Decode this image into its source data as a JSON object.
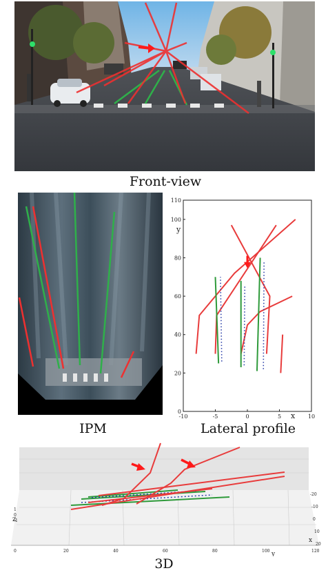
{
  "captions": {
    "front_view": "Front-view",
    "ipm": "IPM",
    "lateral_profile": "Lateral profile",
    "three_d": "3D"
  },
  "colors": {
    "prediction_red": "#e83b3b",
    "ground_truth_green": "#2e9a3a",
    "anchor_blue": "#2a3fa8",
    "arrow_red": "#ff1a1a"
  },
  "chart_data": {
    "type": "line",
    "title": "",
    "xlabel": "x",
    "ylabel": "y",
    "xlim": [
      -10,
      10
    ],
    "ylim": [
      0,
      110
    ],
    "x_ticks": [
      -10,
      -5,
      0,
      5,
      10
    ],
    "y_ticks": [
      0,
      20,
      40,
      60,
      80,
      100,
      110
    ],
    "grid": false,
    "series": [
      {
        "color": "red",
        "points": [
          [
            -2.5,
            97
          ],
          [
            3.5,
            60
          ],
          [
            3.0,
            30
          ]
        ]
      },
      {
        "color": "red",
        "points": [
          [
            -8,
            30
          ],
          [
            -7.5,
            50
          ],
          [
            -2,
            72
          ],
          [
            7.5,
            100
          ]
        ]
      },
      {
        "color": "red",
        "points": [
          [
            -5.0,
            30
          ],
          [
            -4.8,
            50
          ],
          [
            4.5,
            97
          ]
        ]
      },
      {
        "color": "red",
        "points": [
          [
            -1.0,
            30
          ],
          [
            0,
            45
          ],
          [
            2.0,
            52
          ],
          [
            7.0,
            60
          ]
        ]
      },
      {
        "color": "red",
        "points": [
          [
            5.5,
            40
          ],
          [
            5.2,
            20
          ]
        ]
      },
      {
        "color": "green",
        "points": [
          [
            -4.5,
            25
          ],
          [
            -5.0,
            70
          ]
        ]
      },
      {
        "color": "green",
        "points": [
          [
            -1.0,
            23
          ],
          [
            -1.0,
            68
          ]
        ]
      },
      {
        "color": "green",
        "points": [
          [
            1.5,
            21
          ],
          [
            2.0,
            80
          ]
        ]
      },
      {
        "color": "blue_dotted",
        "points": [
          [
            -4.0,
            26
          ],
          [
            -4.2,
            70
          ]
        ]
      },
      {
        "color": "blue_dotted",
        "points": [
          [
            -0.5,
            24
          ],
          [
            -0.4,
            66
          ]
        ]
      },
      {
        "color": "blue_dotted",
        "points": [
          [
            2.5,
            22
          ],
          [
            2.6,
            78
          ]
        ]
      }
    ],
    "annotation": {
      "type": "arrow",
      "color": "red",
      "at": [
        0,
        76
      ]
    }
  },
  "plot_3d": {
    "axis_z": "z",
    "axis_x": "x",
    "axis_y": "y",
    "y_ticks": [
      "0",
      "20",
      "40",
      "60",
      "80",
      "100",
      "120"
    ],
    "x_ticks": [
      "-20",
      "-10",
      "0",
      "10",
      "20"
    ],
    "z_ticks": [
      "1",
      "0",
      "-1"
    ]
  }
}
